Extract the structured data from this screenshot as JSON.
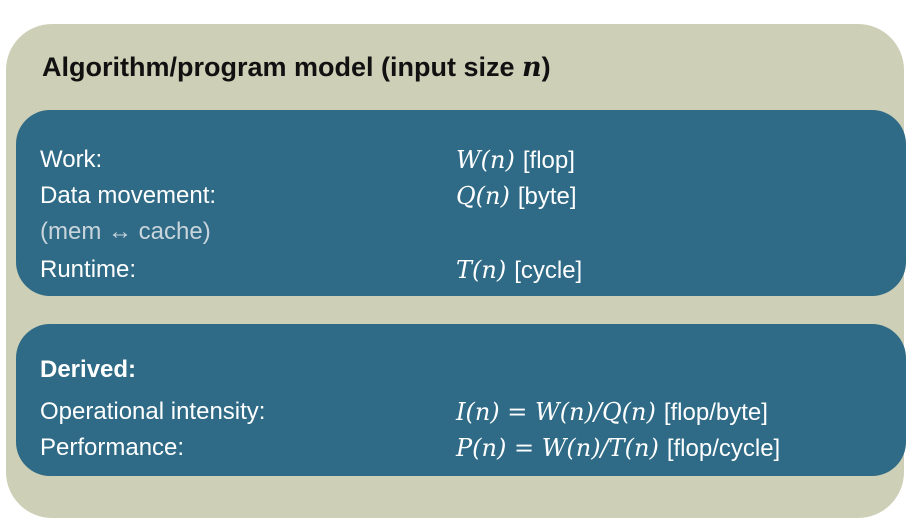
{
  "title": {
    "text": "Algorithm/program model (input size ",
    "variable": "n",
    "close": ")"
  },
  "model": {
    "work": {
      "label": "Work:",
      "formula": "W(n)",
      "unit": "[flop]"
    },
    "data_movement": {
      "label": "Data movement:",
      "formula": "Q(n)",
      "unit": "[byte]"
    },
    "data_movement_note": "(mem ↔ cache)",
    "runtime": {
      "label": "Runtime:",
      "formula": "T(n)",
      "unit": "[cycle]"
    }
  },
  "derived": {
    "heading": "Derived:",
    "intensity": {
      "label": "Operational intensity:",
      "formula": "I(n) = W(n)/Q(n)",
      "unit": "[flop/byte]"
    },
    "performance": {
      "label": "Performance:",
      "formula": "P(n) = W(n)/T(n)",
      "unit": "[flop/cycle]"
    }
  },
  "colors": {
    "outer_background": "#cdcfb6",
    "panel_background": "#2f6b86",
    "panel_text": "#ffffff",
    "muted_text": "#c9d5dc"
  }
}
